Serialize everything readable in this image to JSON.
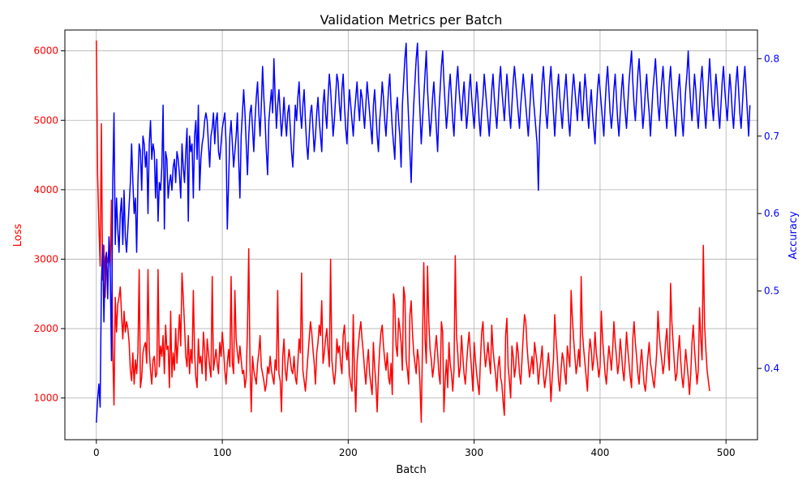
{
  "chart_data": {
    "type": "line",
    "title": "Validation Metrics per Batch",
    "xlabel": "Batch",
    "ylabel_left": "Loss",
    "ylabel_right": "Accuracy",
    "xlim": [
      -25,
      525
    ],
    "ylim_left": [
      400,
      6300
    ],
    "ylim_right": [
      0.308,
      0.837
    ],
    "x_ticks": [
      0,
      100,
      200,
      300,
      400,
      500
    ],
    "y_ticks_left": [
      1000,
      2000,
      3000,
      4000,
      5000,
      6000
    ],
    "y_ticks_right": [
      0.4,
      0.5,
      0.6,
      0.7,
      0.8
    ],
    "grid": true,
    "colors": {
      "loss": "#ff0000",
      "accuracy": "#0000ff",
      "axis": "#000000",
      "grid": "#b0b0b0"
    },
    "series": [
      {
        "name": "Loss",
        "axis": "left",
        "color": "#ff0000",
        "x_start": 0,
        "x_step": 1,
        "values": [
          6150,
          4200,
          3500,
          2900,
          4950,
          2700,
          3200,
          2450,
          3050,
          2950,
          3150,
          2900,
          3850,
          1700,
          900,
          2450,
          1950,
          2350,
          2450,
          2600,
          2200,
          1850,
          2250,
          1950,
          2100,
          2000,
          1800,
          1400,
          1250,
          1650,
          1200,
          1550,
          1350,
          1650,
          2850,
          1150,
          1300,
          1650,
          1750,
          1800,
          1500,
          2850,
          1700,
          1400,
          1200,
          1550,
          1600,
          1300,
          1350,
          2850,
          1450,
          1750,
          1600,
          1900,
          1350,
          2050,
          1700,
          1750,
          1150,
          2250,
          1300,
          1650,
          1400,
          2000,
          1500,
          1850,
          2200,
          1750,
          2800,
          2450,
          2050,
          1600,
          1450,
          1900,
          1350,
          1700,
          1500,
          2550,
          1650,
          1300,
          1150,
          1850,
          1500,
          1600,
          1350,
          1950,
          1700,
          1250,
          1850,
          1650,
          1450,
          1300,
          2750,
          1400,
          1550,
          1700,
          1500,
          1350,
          1800,
          1600,
          1950,
          1700,
          1400,
          1200,
          1500,
          1700,
          1450,
          2750,
          1500,
          1350,
          2550,
          1850,
          1650,
          1500,
          1750,
          1550,
          1350,
          1400,
          1150,
          1300,
          2000,
          3150,
          1500,
          800,
          1600,
          1400,
          1300,
          1200,
          1500,
          1650,
          1900,
          1450,
          1350,
          1250,
          1100,
          1200,
          1450,
          1350,
          1600,
          1400,
          1300,
          1200,
          1550,
          1400,
          2550,
          1350,
          1250,
          800,
          1600,
          1850,
          1400,
          1250,
          1500,
          1700,
          1550,
          1400,
          1350,
          1600,
          1300,
          1200,
          1500,
          1850,
          1650,
          2800,
          1400,
          1250,
          1100,
          1350,
          1600,
          1850,
          2100,
          1950,
          1700,
          1500,
          1200,
          1650,
          1800,
          2050,
          1900,
          2400,
          1500,
          1650,
          1850,
          2000,
          1700,
          1450,
          3000,
          1550,
          1350,
          1200,
          1400,
          1850,
          1650,
          1750,
          1500,
          1350,
          1900,
          2050,
          1700,
          1550,
          1800,
          1350,
          1200,
          1100,
          2200,
          1350,
          800,
          1500,
          1750,
          1950,
          2100,
          1850,
          1650,
          1400,
          1200,
          1500,
          1700,
          1350,
          1200,
          1050,
          1800,
          1450,
          1200,
          800,
          1350,
          1700,
          1950,
          2050,
          1750,
          1550,
          1400,
          1650,
          1300,
          1200,
          1500,
          1050,
          2500,
          2350,
          1750,
          1600,
          2150,
          2000,
          1800,
          1400,
          2600,
          2450,
          1550,
          1400,
          1200,
          2200,
          2400,
          1950,
          1650,
          1500,
          1350,
          1700,
          1550,
          1200,
          650,
          1800,
          2950,
          1850,
          1500,
          2900,
          2100,
          1700,
          1550,
          1300,
          1450,
          1700,
          1900,
          1650,
          1350,
          1200,
          2100,
          1950,
          800,
          1250,
          1550,
          1150,
          1800,
          1500,
          1350,
          1100,
          1400,
          3050,
          1900,
          1650,
          1300,
          1450,
          1900,
          1600,
          1350,
          1200,
          1500,
          1750,
          1950,
          1650,
          1400,
          1100,
          1800,
          1550,
          1350,
          1200,
          1050,
          1550,
          1950,
          2100,
          1700,
          1450,
          1600,
          1800,
          1550,
          1350,
          2050,
          1700,
          1500,
          1350,
          1100,
          1450,
          1600,
          1300,
          1200,
          950,
          750,
          1900,
          2150,
          1450,
          1250,
          1000,
          1750,
          1600,
          1300,
          1450,
          1800,
          1650,
          1350,
          1200,
          1550,
          1900,
          2200,
          2100,
          1750,
          1500,
          1300,
          1450,
          1600,
          1350,
          1800,
          1650,
          1500,
          1200,
          1400,
          1550,
          1750,
          1350,
          1150,
          1300,
          1450,
          1650,
          1400,
          950,
          1300,
          1550,
          2200,
          1850,
          1600,
          1250,
          1100,
          1400,
          1650,
          1550,
          1350,
          1200,
          1750,
          1600,
          1450,
          2550,
          2150,
          1850,
          1600,
          1350,
          1500,
          1700,
          1450,
          2750,
          1950,
          1700,
          1500,
          1300,
          1100,
          1600,
          1850,
          1700,
          1400,
          1550,
          1950,
          1650,
          1500,
          1300,
          1450,
          2250,
          1850,
          1600,
          1350,
          1200,
          1500,
          1750,
          1600,
          1400,
          1700,
          2100,
          1800,
          1600,
          1350,
          1500,
          1850,
          1650,
          1400,
          1250,
          1550,
          1950,
          1700,
          1500,
          1300,
          1150,
          1850,
          2100,
          1800,
          1600,
          1350,
          1200,
          1500,
          1700,
          1450,
          1200,
          1100,
          1350,
          1600,
          1800,
          1500,
          1400,
          1250,
          1150,
          1400,
          1650,
          2250,
          1900,
          1700,
          1550,
          1350,
          1500,
          1800,
          2000,
          1650,
          1400,
          2650,
          2100,
          1800,
          1500,
          1250,
          1350,
          1650,
          1900,
          1550,
          1300,
          1150,
          1400,
          1700,
          1500,
          1300,
          1050,
          1350,
          1800,
          2050,
          1700,
          1450,
          1200,
          1400,
          2300,
          1850,
          1550,
          3200,
          2050,
          1700,
          1400,
          1250,
          1100
        ]
      },
      {
        "name": "Accuracy",
        "axis": "right",
        "color": "#0000ff",
        "x_start": 0,
        "x_step": 1,
        "values": [
          0.33,
          0.36,
          0.38,
          0.35,
          0.51,
          0.56,
          0.46,
          0.54,
          0.55,
          0.49,
          0.57,
          0.53,
          0.41,
          0.64,
          0.73,
          0.56,
          0.62,
          0.58,
          0.55,
          0.6,
          0.62,
          0.56,
          0.63,
          0.57,
          0.55,
          0.58,
          0.61,
          0.64,
          0.69,
          0.64,
          0.6,
          0.62,
          0.55,
          0.64,
          0.69,
          0.68,
          0.63,
          0.7,
          0.69,
          0.66,
          0.68,
          0.6,
          0.69,
          0.72,
          0.67,
          0.69,
          0.68,
          0.62,
          0.67,
          0.59,
          0.64,
          0.63,
          0.66,
          0.74,
          0.58,
          0.68,
          0.67,
          0.62,
          0.64,
          0.65,
          0.63,
          0.66,
          0.67,
          0.64,
          0.68,
          0.67,
          0.65,
          0.62,
          0.69,
          0.66,
          0.64,
          0.68,
          0.71,
          0.59,
          0.7,
          0.68,
          0.69,
          0.62,
          0.7,
          0.72,
          0.67,
          0.74,
          0.63,
          0.67,
          0.69,
          0.7,
          0.72,
          0.73,
          0.72,
          0.69,
          0.66,
          0.7,
          0.71,
          0.73,
          0.69,
          0.72,
          0.73,
          0.68,
          0.67,
          0.69,
          0.71,
          0.72,
          0.73,
          0.69,
          0.58,
          0.64,
          0.7,
          0.72,
          0.69,
          0.66,
          0.68,
          0.7,
          0.73,
          0.67,
          0.62,
          0.7,
          0.73,
          0.76,
          0.73,
          0.69,
          0.65,
          0.7,
          0.73,
          0.74,
          0.71,
          0.68,
          0.72,
          0.75,
          0.77,
          0.73,
          0.7,
          0.74,
          0.79,
          0.75,
          0.72,
          0.68,
          0.65,
          0.72,
          0.74,
          0.76,
          0.73,
          0.8,
          0.75,
          0.71,
          0.74,
          0.76,
          0.73,
          0.7,
          0.72,
          0.75,
          0.72,
          0.7,
          0.73,
          0.74,
          0.71,
          0.68,
          0.66,
          0.7,
          0.74,
          0.72,
          0.75,
          0.77,
          0.73,
          0.71,
          0.74,
          0.76,
          0.72,
          0.69,
          0.67,
          0.7,
          0.73,
          0.74,
          0.71,
          0.68,
          0.7,
          0.73,
          0.75,
          0.72,
          0.7,
          0.68,
          0.74,
          0.76,
          0.73,
          0.71,
          0.75,
          0.78,
          0.76,
          0.73,
          0.7,
          0.72,
          0.75,
          0.78,
          0.77,
          0.74,
          0.72,
          0.76,
          0.78,
          0.74,
          0.71,
          0.69,
          0.73,
          0.76,
          0.74,
          0.72,
          0.7,
          0.73,
          0.75,
          0.77,
          0.74,
          0.72,
          0.76,
          0.75,
          0.73,
          0.71,
          0.74,
          0.77,
          0.75,
          0.73,
          0.71,
          0.69,
          0.74,
          0.76,
          0.73,
          0.7,
          0.68,
          0.72,
          0.74,
          0.77,
          0.75,
          0.72,
          0.7,
          0.73,
          0.76,
          0.78,
          0.74,
          0.71,
          0.69,
          0.67,
          0.73,
          0.75,
          0.72,
          0.7,
          0.66,
          0.74,
          0.77,
          0.8,
          0.82,
          0.76,
          0.72,
          0.68,
          0.64,
          0.7,
          0.74,
          0.77,
          0.8,
          0.82,
          0.77,
          0.73,
          0.69,
          0.72,
          0.75,
          0.78,
          0.81,
          0.76,
          0.73,
          0.7,
          0.72,
          0.75,
          0.77,
          0.74,
          0.71,
          0.68,
          0.73,
          0.76,
          0.79,
          0.81,
          0.77,
          0.74,
          0.71,
          0.73,
          0.76,
          0.78,
          0.75,
          0.72,
          0.7,
          0.74,
          0.77,
          0.79,
          0.76,
          0.74,
          0.72,
          0.75,
          0.77,
          0.74,
          0.71,
          0.73,
          0.76,
          0.78,
          0.75,
          0.73,
          0.71,
          0.74,
          0.77,
          0.75,
          0.72,
          0.7,
          0.73,
          0.75,
          0.78,
          0.76,
          0.74,
          0.72,
          0.7,
          0.73,
          0.76,
          0.78,
          0.75,
          0.73,
          0.71,
          0.74,
          0.77,
          0.79,
          0.76,
          0.74,
          0.72,
          0.75,
          0.78,
          0.76,
          0.73,
          0.71,
          0.74,
          0.77,
          0.79,
          0.77,
          0.75,
          0.73,
          0.71,
          0.74,
          0.76,
          0.78,
          0.76,
          0.74,
          0.72,
          0.7,
          0.73,
          0.76,
          0.78,
          0.75,
          0.73,
          0.71,
          0.69,
          0.63,
          0.71,
          0.74,
          0.77,
          0.79,
          0.76,
          0.73,
          0.71,
          0.74,
          0.77,
          0.79,
          0.76,
          0.73,
          0.7,
          0.73,
          0.76,
          0.78,
          0.75,
          0.73,
          0.71,
          0.74,
          0.76,
          0.78,
          0.75,
          0.72,
          0.7,
          0.73,
          0.76,
          0.78,
          0.76,
          0.74,
          0.72,
          0.75,
          0.77,
          0.74,
          0.72,
          0.75,
          0.78,
          0.76,
          0.73,
          0.71,
          0.74,
          0.76,
          0.73,
          0.71,
          0.69,
          0.73,
          0.76,
          0.78,
          0.76,
          0.74,
          0.72,
          0.7,
          0.74,
          0.77,
          0.79,
          0.76,
          0.73,
          0.71,
          0.73,
          0.76,
          0.78,
          0.75,
          0.72,
          0.7,
          0.73,
          0.76,
          0.78,
          0.75,
          0.73,
          0.71,
          0.74,
          0.77,
          0.79,
          0.81,
          0.77,
          0.74,
          0.72,
          0.75,
          0.78,
          0.8,
          0.77,
          0.74,
          0.71,
          0.73,
          0.76,
          0.78,
          0.75,
          0.73,
          0.7,
          0.73,
          0.76,
          0.78,
          0.8,
          0.77,
          0.74,
          0.72,
          0.75,
          0.77,
          0.79,
          0.76,
          0.73,
          0.71,
          0.74,
          0.77,
          0.79,
          0.76,
          0.74,
          0.72,
          0.7,
          0.73,
          0.76,
          0.78,
          0.75,
          0.72,
          0.7,
          0.73,
          0.76,
          0.78,
          0.81,
          0.77,
          0.74,
          0.72,
          0.75,
          0.78,
          0.76,
          0.73,
          0.71,
          0.74,
          0.77,
          0.79,
          0.76,
          0.73,
          0.71,
          0.74,
          0.77,
          0.8,
          0.77,
          0.74,
          0.72,
          0.75,
          0.78,
          0.76,
          0.73,
          0.71,
          0.74,
          0.77,
          0.79,
          0.76,
          0.74,
          0.72,
          0.75,
          0.78,
          0.76,
          0.73,
          0.71,
          0.74,
          0.77,
          0.79,
          0.76,
          0.73,
          0.71,
          0.74,
          0.77,
          0.79,
          0.76,
          0.73,
          0.7,
          0.74
        ]
      }
    ]
  }
}
